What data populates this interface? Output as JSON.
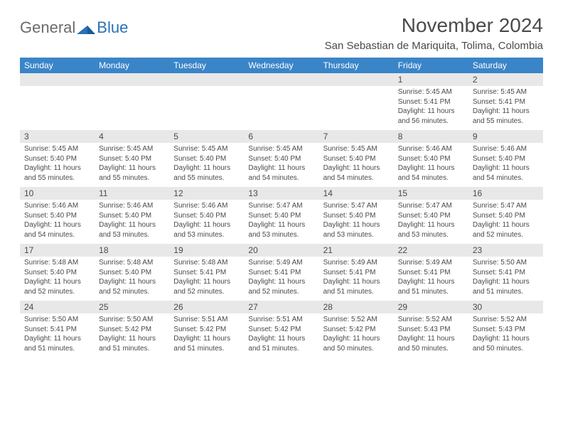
{
  "logo": {
    "general": "General",
    "blue": "Blue"
  },
  "title": "November 2024",
  "location": "San Sebastian de Mariquita, Tolima, Colombia",
  "colors": {
    "header_bg": "#3a85c8",
    "header_text": "#ffffff",
    "daynum_bg": "#e8e8e8",
    "text": "#4a4a4a",
    "logo_blue": "#2772b8",
    "logo_gray": "#6b6b6b"
  },
  "dayNames": [
    "Sunday",
    "Monday",
    "Tuesday",
    "Wednesday",
    "Thursday",
    "Friday",
    "Saturday"
  ],
  "weeks": [
    [
      null,
      null,
      null,
      null,
      null,
      {
        "n": "1",
        "sr": "5:45 AM",
        "ss": "5:41 PM",
        "dl": "11 hours and 56 minutes."
      },
      {
        "n": "2",
        "sr": "5:45 AM",
        "ss": "5:41 PM",
        "dl": "11 hours and 55 minutes."
      }
    ],
    [
      {
        "n": "3",
        "sr": "5:45 AM",
        "ss": "5:40 PM",
        "dl": "11 hours and 55 minutes."
      },
      {
        "n": "4",
        "sr": "5:45 AM",
        "ss": "5:40 PM",
        "dl": "11 hours and 55 minutes."
      },
      {
        "n": "5",
        "sr": "5:45 AM",
        "ss": "5:40 PM",
        "dl": "11 hours and 55 minutes."
      },
      {
        "n": "6",
        "sr": "5:45 AM",
        "ss": "5:40 PM",
        "dl": "11 hours and 54 minutes."
      },
      {
        "n": "7",
        "sr": "5:45 AM",
        "ss": "5:40 PM",
        "dl": "11 hours and 54 minutes."
      },
      {
        "n": "8",
        "sr": "5:46 AM",
        "ss": "5:40 PM",
        "dl": "11 hours and 54 minutes."
      },
      {
        "n": "9",
        "sr": "5:46 AM",
        "ss": "5:40 PM",
        "dl": "11 hours and 54 minutes."
      }
    ],
    [
      {
        "n": "10",
        "sr": "5:46 AM",
        "ss": "5:40 PM",
        "dl": "11 hours and 54 minutes."
      },
      {
        "n": "11",
        "sr": "5:46 AM",
        "ss": "5:40 PM",
        "dl": "11 hours and 53 minutes."
      },
      {
        "n": "12",
        "sr": "5:46 AM",
        "ss": "5:40 PM",
        "dl": "11 hours and 53 minutes."
      },
      {
        "n": "13",
        "sr": "5:47 AM",
        "ss": "5:40 PM",
        "dl": "11 hours and 53 minutes."
      },
      {
        "n": "14",
        "sr": "5:47 AM",
        "ss": "5:40 PM",
        "dl": "11 hours and 53 minutes."
      },
      {
        "n": "15",
        "sr": "5:47 AM",
        "ss": "5:40 PM",
        "dl": "11 hours and 53 minutes."
      },
      {
        "n": "16",
        "sr": "5:47 AM",
        "ss": "5:40 PM",
        "dl": "11 hours and 52 minutes."
      }
    ],
    [
      {
        "n": "17",
        "sr": "5:48 AM",
        "ss": "5:40 PM",
        "dl": "11 hours and 52 minutes."
      },
      {
        "n": "18",
        "sr": "5:48 AM",
        "ss": "5:40 PM",
        "dl": "11 hours and 52 minutes."
      },
      {
        "n": "19",
        "sr": "5:48 AM",
        "ss": "5:41 PM",
        "dl": "11 hours and 52 minutes."
      },
      {
        "n": "20",
        "sr": "5:49 AM",
        "ss": "5:41 PM",
        "dl": "11 hours and 52 minutes."
      },
      {
        "n": "21",
        "sr": "5:49 AM",
        "ss": "5:41 PM",
        "dl": "11 hours and 51 minutes."
      },
      {
        "n": "22",
        "sr": "5:49 AM",
        "ss": "5:41 PM",
        "dl": "11 hours and 51 minutes."
      },
      {
        "n": "23",
        "sr": "5:50 AM",
        "ss": "5:41 PM",
        "dl": "11 hours and 51 minutes."
      }
    ],
    [
      {
        "n": "24",
        "sr": "5:50 AM",
        "ss": "5:41 PM",
        "dl": "11 hours and 51 minutes."
      },
      {
        "n": "25",
        "sr": "5:50 AM",
        "ss": "5:42 PM",
        "dl": "11 hours and 51 minutes."
      },
      {
        "n": "26",
        "sr": "5:51 AM",
        "ss": "5:42 PM",
        "dl": "11 hours and 51 minutes."
      },
      {
        "n": "27",
        "sr": "5:51 AM",
        "ss": "5:42 PM",
        "dl": "11 hours and 51 minutes."
      },
      {
        "n": "28",
        "sr": "5:52 AM",
        "ss": "5:42 PM",
        "dl": "11 hours and 50 minutes."
      },
      {
        "n": "29",
        "sr": "5:52 AM",
        "ss": "5:43 PM",
        "dl": "11 hours and 50 minutes."
      },
      {
        "n": "30",
        "sr": "5:52 AM",
        "ss": "5:43 PM",
        "dl": "11 hours and 50 minutes."
      }
    ]
  ],
  "labels": {
    "sunrise": "Sunrise: ",
    "sunset": "Sunset: ",
    "daylight": "Daylight: "
  }
}
